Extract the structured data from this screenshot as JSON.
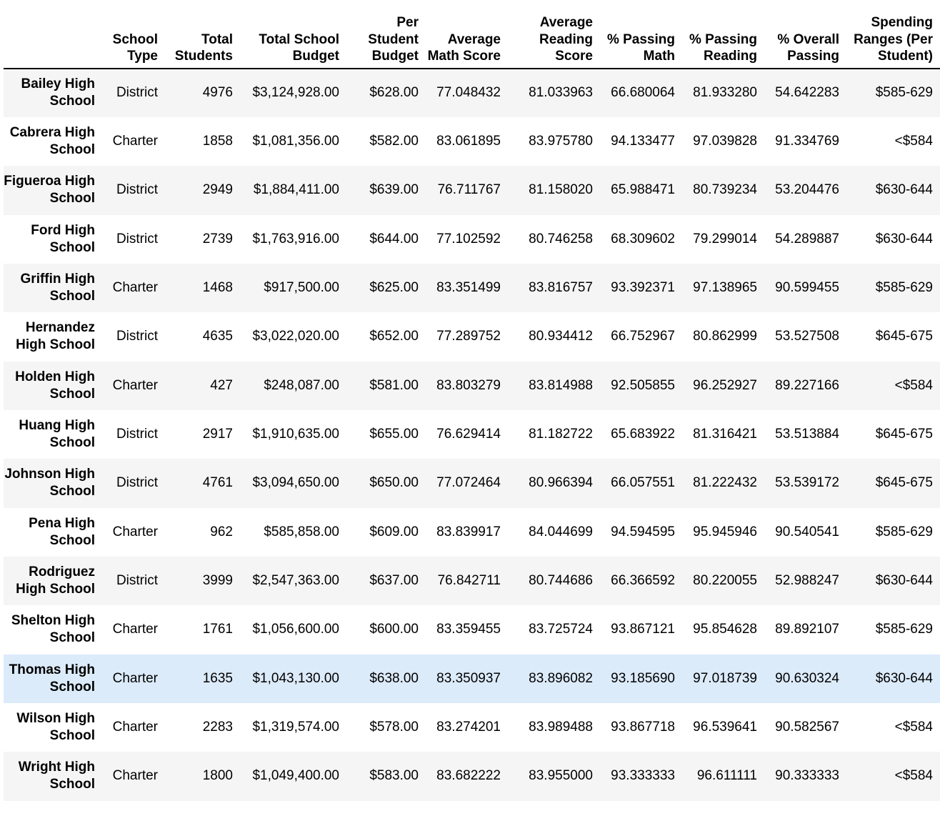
{
  "table": {
    "columns": [
      "",
      "School Type",
      "Total Students",
      "Total School Budget",
      "Per Student Budget",
      "Average Math Score",
      "Average Reading Score",
      "% Passing Math",
      "% Passing Reading",
      "% Overall Passing",
      "Spending Ranges (Per Student)"
    ],
    "highlighted_row": 12,
    "rows": [
      {
        "school": "Bailey High School",
        "type": "District",
        "students": "4976",
        "budget": "$3,124,928.00",
        "per_student": "$628.00",
        "avg_math": "77.048432",
        "avg_reading": "81.033963",
        "pass_math": "66.680064",
        "pass_reading": "81.933280",
        "overall": "54.642283",
        "range": "$585-629"
      },
      {
        "school": "Cabrera High School",
        "type": "Charter",
        "students": "1858",
        "budget": "$1,081,356.00",
        "per_student": "$582.00",
        "avg_math": "83.061895",
        "avg_reading": "83.975780",
        "pass_math": "94.133477",
        "pass_reading": "97.039828",
        "overall": "91.334769",
        "range": "<$584"
      },
      {
        "school": "Figueroa High School",
        "type": "District",
        "students": "2949",
        "budget": "$1,884,411.00",
        "per_student": "$639.00",
        "avg_math": "76.711767",
        "avg_reading": "81.158020",
        "pass_math": "65.988471",
        "pass_reading": "80.739234",
        "overall": "53.204476",
        "range": "$630-644"
      },
      {
        "school": "Ford High School",
        "type": "District",
        "students": "2739",
        "budget": "$1,763,916.00",
        "per_student": "$644.00",
        "avg_math": "77.102592",
        "avg_reading": "80.746258",
        "pass_math": "68.309602",
        "pass_reading": "79.299014",
        "overall": "54.289887",
        "range": "$630-644"
      },
      {
        "school": "Griffin High School",
        "type": "Charter",
        "students": "1468",
        "budget": "$917,500.00",
        "per_student": "$625.00",
        "avg_math": "83.351499",
        "avg_reading": "83.816757",
        "pass_math": "93.392371",
        "pass_reading": "97.138965",
        "overall": "90.599455",
        "range": "$585-629"
      },
      {
        "school": "Hernandez High School",
        "type": "District",
        "students": "4635",
        "budget": "$3,022,020.00",
        "per_student": "$652.00",
        "avg_math": "77.289752",
        "avg_reading": "80.934412",
        "pass_math": "66.752967",
        "pass_reading": "80.862999",
        "overall": "53.527508",
        "range": "$645-675"
      },
      {
        "school": "Holden High School",
        "type": "Charter",
        "students": "427",
        "budget": "$248,087.00",
        "per_student": "$581.00",
        "avg_math": "83.803279",
        "avg_reading": "83.814988",
        "pass_math": "92.505855",
        "pass_reading": "96.252927",
        "overall": "89.227166",
        "range": "<$584"
      },
      {
        "school": "Huang High School",
        "type": "District",
        "students": "2917",
        "budget": "$1,910,635.00",
        "per_student": "$655.00",
        "avg_math": "76.629414",
        "avg_reading": "81.182722",
        "pass_math": "65.683922",
        "pass_reading": "81.316421",
        "overall": "53.513884",
        "range": "$645-675"
      },
      {
        "school": "Johnson High School",
        "type": "District",
        "students": "4761",
        "budget": "$3,094,650.00",
        "per_student": "$650.00",
        "avg_math": "77.072464",
        "avg_reading": "80.966394",
        "pass_math": "66.057551",
        "pass_reading": "81.222432",
        "overall": "53.539172",
        "range": "$645-675"
      },
      {
        "school": "Pena High School",
        "type": "Charter",
        "students": "962",
        "budget": "$585,858.00",
        "per_student": "$609.00",
        "avg_math": "83.839917",
        "avg_reading": "84.044699",
        "pass_math": "94.594595",
        "pass_reading": "95.945946",
        "overall": "90.540541",
        "range": "$585-629"
      },
      {
        "school": "Rodriguez High School",
        "type": "District",
        "students": "3999",
        "budget": "$2,547,363.00",
        "per_student": "$637.00",
        "avg_math": "76.842711",
        "avg_reading": "80.744686",
        "pass_math": "66.366592",
        "pass_reading": "80.220055",
        "overall": "52.988247",
        "range": "$630-644"
      },
      {
        "school": "Shelton High School",
        "type": "Charter",
        "students": "1761",
        "budget": "$1,056,600.00",
        "per_student": "$600.00",
        "avg_math": "83.359455",
        "avg_reading": "83.725724",
        "pass_math": "93.867121",
        "pass_reading": "95.854628",
        "overall": "89.892107",
        "range": "$585-629"
      },
      {
        "school": "Thomas High School",
        "type": "Charter",
        "students": "1635",
        "budget": "$1,043,130.00",
        "per_student": "$638.00",
        "avg_math": "83.350937",
        "avg_reading": "83.896082",
        "pass_math": "93.185690",
        "pass_reading": "97.018739",
        "overall": "90.630324",
        "range": "$630-644"
      },
      {
        "school": "Wilson High School",
        "type": "Charter",
        "students": "2283",
        "budget": "$1,319,574.00",
        "per_student": "$578.00",
        "avg_math": "83.274201",
        "avg_reading": "83.989488",
        "pass_math": "93.867718",
        "pass_reading": "96.539641",
        "overall": "90.582567",
        "range": "<$584"
      },
      {
        "school": "Wright High School",
        "type": "Charter",
        "students": "1800",
        "budget": "$1,049,400.00",
        "per_student": "$583.00",
        "avg_math": "83.682222",
        "avg_reading": "83.955000",
        "pass_math": "93.333333",
        "pass_reading": "96.611111",
        "overall": "90.333333",
        "range": "<$584"
      }
    ]
  },
  "colors": {
    "stripe": "#f5f5f5",
    "hover": "#dcebfa",
    "header_rule": "#000000"
  }
}
